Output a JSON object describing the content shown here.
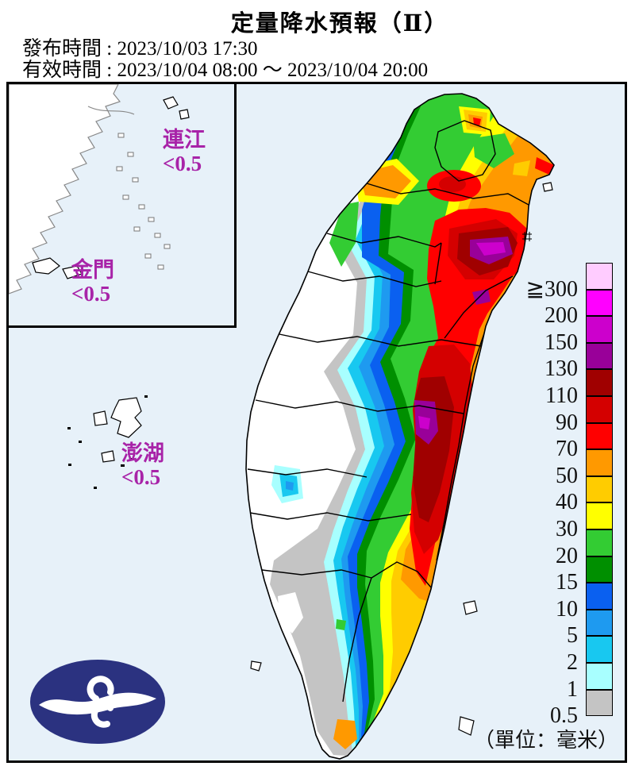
{
  "header": {
    "title": "定量降水預報（Ⅱ）",
    "issued_line": "發布時間 : 2023/10/03 17:30",
    "valid_line": "有效時間 : 2023/10/04 08:00 ～ 2023/10/04 20:00"
  },
  "map": {
    "sea_color": "#E7F1F9",
    "land_color": "#FFFFFF",
    "region_label_color": "#A823A8",
    "inset_regions": [
      {
        "name": "連江",
        "value": "<0.5"
      },
      {
        "name": "金門",
        "value": "<0.5"
      }
    ],
    "regions": [
      {
        "name": "澎湖",
        "value": "<0.5"
      }
    ],
    "unit_note": "（單位：毫米）"
  },
  "legend": {
    "entries": [
      {
        "key": "300",
        "label": "≧300",
        "color": "#FFCCFF"
      },
      {
        "key": "200",
        "label": "200",
        "color": "#FF00FF"
      },
      {
        "key": "150",
        "label": "150",
        "color": "#CC00CC"
      },
      {
        "key": "130",
        "label": "130",
        "color": "#990099"
      },
      {
        "key": "110",
        "label": "110",
        "color": "#A00000"
      },
      {
        "key": "90",
        "label": "90",
        "color": "#D40000"
      },
      {
        "key": "70",
        "label": "70",
        "color": "#FF0000"
      },
      {
        "key": "50",
        "label": "50",
        "color": "#FF9900"
      },
      {
        "key": "40",
        "label": "40",
        "color": "#FFCC00"
      },
      {
        "key": "30",
        "label": "30",
        "color": "#FFFF00"
      },
      {
        "key": "20",
        "label": "20",
        "color": "#33CC33"
      },
      {
        "key": "15",
        "label": "15",
        "color": "#008F00"
      },
      {
        "key": "10",
        "label": "10",
        "color": "#0A60F0"
      },
      {
        "key": "5",
        "label": "5",
        "color": "#1E9AF0"
      },
      {
        "key": "2",
        "label": "2",
        "color": "#18C8F0"
      },
      {
        "key": "1",
        "label": "1",
        "color": "#A8FFFF"
      },
      {
        "key": "0.5",
        "label": "0.5",
        "color": "#C4C4C4"
      }
    ]
  },
  "logo": {
    "color": "#2B3280"
  }
}
